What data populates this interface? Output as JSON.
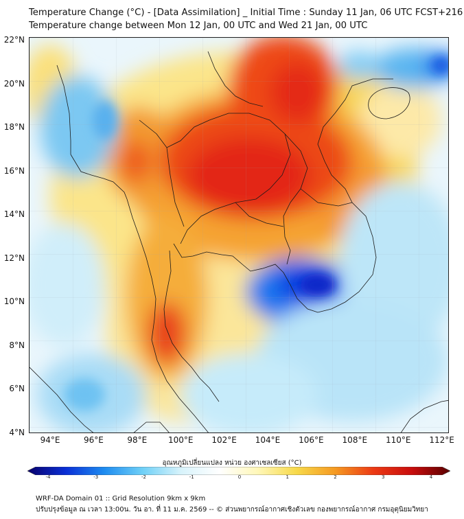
{
  "title_line1": "Temperature Change (°C) - [Data Assimilation] _ Initial Time : Sunday 11 Jan, 06 UTC FCST+216",
  "title_line2": "Temperature change between Mon 12 Jan, 00 UTC and Wed 21 Jan, 00 UTC",
  "lat_labels": [
    "22°N",
    "20°N",
    "18°N",
    "16°N",
    "14°N",
    "12°N",
    "10°N",
    "8°N",
    "6°N",
    "4°N"
  ],
  "lon_labels": [
    "94°E",
    "96°E",
    "98°E",
    "100°E",
    "102°E",
    "104°E",
    "106°E",
    "108°E",
    "110°E",
    "112°E"
  ],
  "colorbar": {
    "title": "อุณหภูมิเปลี่ยนแปลง หน่วย องศาเซลเซียส (°C)",
    "ticks": [
      "-4",
      "-3",
      "-2",
      "-1",
      "0",
      "1",
      "2",
      "3",
      "4"
    ],
    "range": [
      -4,
      4
    ],
    "colors": [
      "#08006b",
      "#0a2fd6",
      "#1e8cf0",
      "#6fd0f7",
      "#d8f3fb",
      "#ffffff",
      "#fff7b8",
      "#f7d94a",
      "#f59a22",
      "#ec3a14",
      "#c80d0d",
      "#5a0000"
    ]
  },
  "footer_line1": "WRF-DA Domain 01 :: Grid Resolution 9km x 9km",
  "footer_line2": "ปรับปรุงข้อมูล ณ เวลา 13:00น. วัน อา. ที่ 11 ม.ค. 2569 -- © ส่วนพยากรณ์อากาศเชิงตัวเลข กองพยากรณ์อากาศ กรมอุตุนิยมวิทยา"
}
